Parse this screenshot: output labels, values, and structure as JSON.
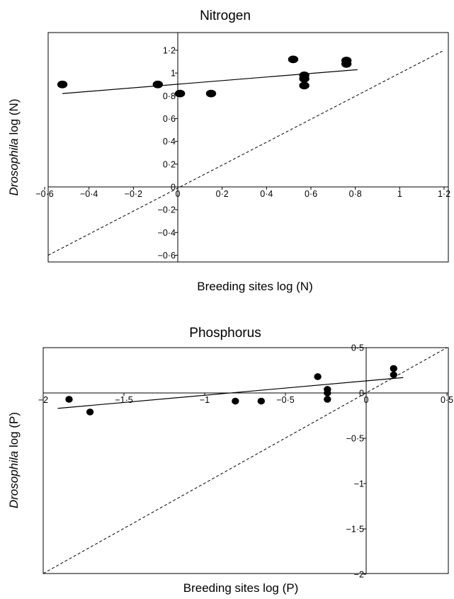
{
  "chart_data": [
    {
      "type": "scatter",
      "title": "Nitrogen",
      "xlabel": "Breeding sites log (N)",
      "ylabel_italic": "Drosophila",
      "ylabel_rest": " log (N)",
      "xlim": [
        -0.6,
        1.25
      ],
      "ylim": [
        -0.6,
        1.2
      ],
      "x_ticks": [
        -0.6,
        -0.4,
        -0.2,
        0,
        0.2,
        0.4,
        0.6,
        0.8,
        1,
        1.2
      ],
      "y_ticks": [
        -0.6,
        -0.4,
        -0.2,
        0,
        0.2,
        0.4,
        0.6,
        0.8,
        1,
        1.2
      ],
      "x_tick_labels": [
        "−0·6",
        "−0·4",
        "−0·2",
        "0",
        "0·2",
        "0·4",
        "0·6",
        "0·8",
        "1",
        "1·2"
      ],
      "y_tick_labels": [
        "−0·6",
        "−0·4",
        "−0·2",
        "0",
        "0·2",
        "0·4",
        "0·6",
        "0·8",
        "1",
        "1·2"
      ],
      "points": [
        {
          "x": -0.52,
          "y": 0.9
        },
        {
          "x": -0.09,
          "y": 0.9
        },
        {
          "x": 0.01,
          "y": 0.82
        },
        {
          "x": 0.15,
          "y": 0.82
        },
        {
          "x": 0.52,
          "y": 1.12
        },
        {
          "x": 0.57,
          "y": 0.98
        },
        {
          "x": 0.57,
          "y": 0.95
        },
        {
          "x": 0.57,
          "y": 0.89
        },
        {
          "x": 0.76,
          "y": 1.11
        },
        {
          "x": 0.76,
          "y": 1.08
        }
      ],
      "regression": [
        [
          -0.52,
          0.82
        ],
        [
          0.81,
          1.03
        ]
      ],
      "identity_line": true,
      "colors": {
        "marks": "#000000",
        "background": "#ffffff"
      }
    },
    {
      "type": "scatter",
      "title": "Phosphorus",
      "xlabel": "Breeding sites log (P)",
      "ylabel_italic": "Drosophila",
      "ylabel_rest": " log (P)",
      "xlim": [
        -2,
        0.5
      ],
      "ylim": [
        -2,
        0.5
      ],
      "x_ticks": [
        -2,
        -1.5,
        -1,
        -0.5,
        0,
        0.5
      ],
      "y_ticks": [
        -2,
        -1.5,
        -1,
        -0.5,
        0,
        0.5
      ],
      "x_tick_labels": [
        "−2",
        "−1·5",
        "−1",
        "−0·5",
        "0",
        "0·5"
      ],
      "y_tick_labels": [
        "−2",
        "−1·5",
        "−1",
        "−0·5",
        "0",
        "0·5"
      ],
      "points": [
        {
          "x": -1.84,
          "y": -0.07
        },
        {
          "x": -1.71,
          "y": -0.21
        },
        {
          "x": -0.81,
          "y": -0.09
        },
        {
          "x": -0.65,
          "y": -0.09
        },
        {
          "x": -0.3,
          "y": 0.18
        },
        {
          "x": -0.24,
          "y": 0.04
        },
        {
          "x": -0.24,
          "y": 0.0
        },
        {
          "x": -0.24,
          "y": -0.07
        },
        {
          "x": 0.17,
          "y": 0.27
        },
        {
          "x": 0.17,
          "y": 0.2
        }
      ],
      "regression": [
        [
          -1.91,
          -0.17
        ],
        [
          0.23,
          0.17
        ]
      ],
      "identity_line": true,
      "colors": {
        "marks": "#000000",
        "background": "#ffffff"
      }
    }
  ]
}
